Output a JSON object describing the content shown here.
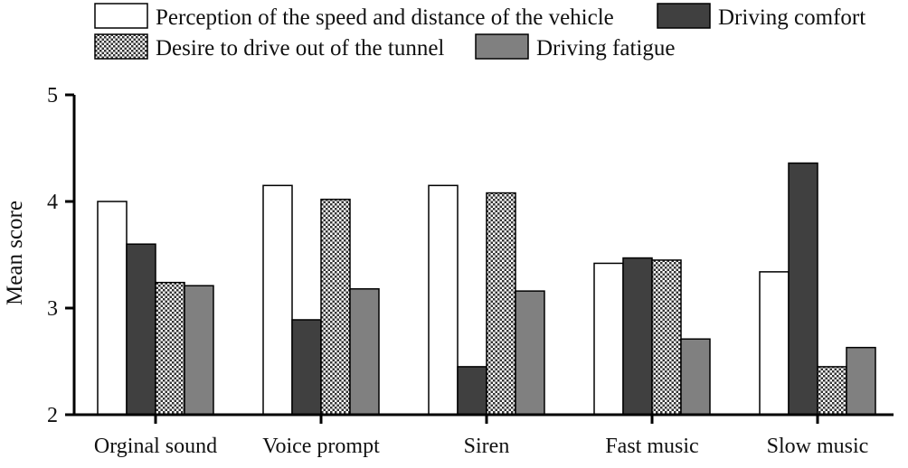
{
  "chart_data": {
    "type": "bar",
    "title": "",
    "xlabel": "",
    "ylabel": "Mean score",
    "ylim": [
      2,
      5
    ],
    "yticks": [
      "2",
      "3",
      "4",
      "5"
    ],
    "grid": false,
    "legend_position": "top",
    "categories": [
      "Orginal sound",
      "Voice prompt",
      "Siren",
      "Fast music",
      "Slow music"
    ],
    "series": [
      {
        "name": "Perception of the speed and distance of the vehicle",
        "fill": "white",
        "values": [
          4.0,
          4.15,
          4.15,
          3.42,
          3.34
        ]
      },
      {
        "name": "Driving comfort",
        "fill": "#404040",
        "values": [
          3.6,
          2.89,
          2.45,
          3.47,
          4.36
        ]
      },
      {
        "name": "Desire to drive out of the tunnel",
        "fill": "checker",
        "values": [
          3.24,
          4.02,
          4.08,
          3.45,
          2.45
        ]
      },
      {
        "name": "Driving fatigue",
        "fill": "#808080",
        "values": [
          3.21,
          3.18,
          3.16,
          2.71,
          2.63
        ]
      }
    ]
  }
}
